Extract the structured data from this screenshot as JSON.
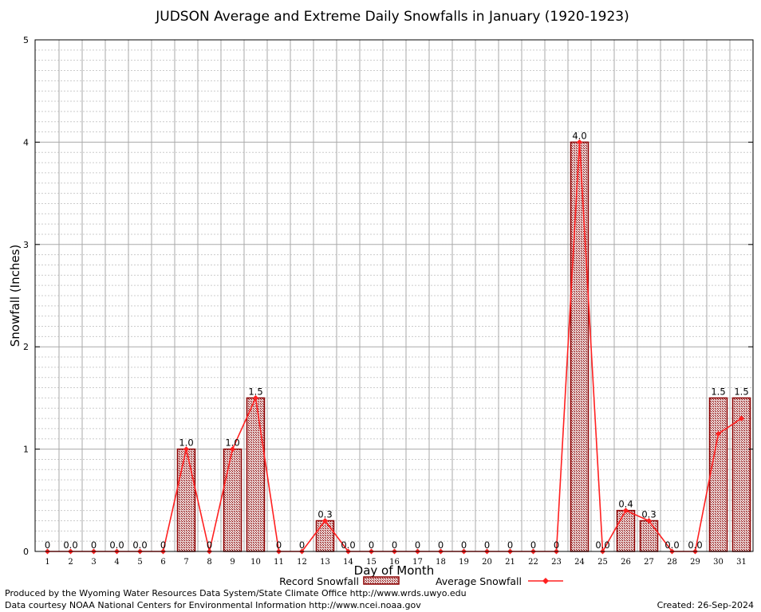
{
  "chart_data": {
    "type": "bar",
    "title": "JUDSON Average and Extreme Daily Snowfalls in January (1920-1923)",
    "xlabel": "Day of Month",
    "ylabel": "Snowfall (Inches)",
    "ylim": [
      0,
      5
    ],
    "yticks": [
      "0",
      "1",
      "2",
      "3",
      "4",
      "5"
    ],
    "categories": [
      "1",
      "2",
      "3",
      "4",
      "5",
      "6",
      "7",
      "8",
      "9",
      "10",
      "11",
      "12",
      "13",
      "14",
      "15",
      "16",
      "17",
      "18",
      "19",
      "20",
      "21",
      "22",
      "23",
      "24",
      "25",
      "26",
      "27",
      "28",
      "29",
      "30",
      "31"
    ],
    "series": [
      {
        "name": "Record Snowfall",
        "values": [
          0,
          0,
          0,
          0,
          0,
          0,
          1.0,
          0,
          1.0,
          1.5,
          0,
          0,
          0.3,
          0,
          0,
          0,
          0,
          0,
          0,
          0,
          0,
          0,
          0,
          4.0,
          0,
          0.4,
          0.3,
          0,
          0,
          1.5,
          1.5
        ],
        "labels": [
          "0",
          "0.0",
          "0",
          "0.0",
          "0.0",
          "0",
          "1.0",
          "0",
          "1.0",
          "1.5",
          "0",
          "0",
          "0.3",
          "0.0",
          "0",
          "0",
          "0",
          "0",
          "0",
          "0",
          "0",
          "0",
          "0",
          "4.0",
          "0.0",
          "0.4",
          "0.3",
          "0.0",
          "0.0",
          "1.5",
          "1.5"
        ]
      },
      {
        "name": "Average Snowfall",
        "values": [
          0,
          0,
          0,
          0,
          0,
          0,
          1.0,
          0,
          1.0,
          1.5,
          0,
          0,
          0.3,
          0,
          0,
          0,
          0,
          0,
          0,
          0,
          0,
          0,
          0,
          4.0,
          0,
          0.4,
          0.3,
          0,
          0,
          1.15,
          1.3
        ]
      }
    ],
    "grid": true,
    "legend": "bottom"
  },
  "footer": {
    "producer": "Produced by the Wyoming Water Resources Data System/State Climate Office http://www.wrds.uwyo.edu",
    "courtesy": "Data courtesy NOAA National Centers for Environmental Information http://www.ncei.noaa.gov",
    "created": "Created: 26-Sep-2024"
  },
  "colors": {
    "bar_fill": "#d8b0b0",
    "bar_stroke": "#8b0000",
    "line": "#ff2020",
    "grid_major": "#aaaaaa",
    "grid_minor": "#cccccc"
  }
}
